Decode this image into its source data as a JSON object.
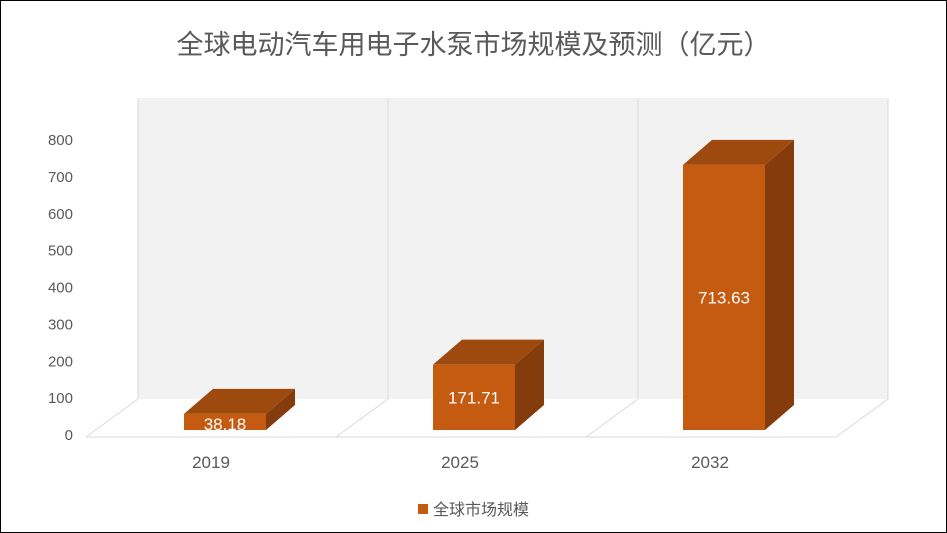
{
  "chart_data": {
    "type": "bar",
    "title": "全球电动汽车用电子水泵市场规模及预测（亿元）",
    "categories": [
      "2019",
      "2025",
      "2032"
    ],
    "series": [
      {
        "name": "全球市场规模",
        "values": [
          38.18,
          171.71,
          713.63
        ]
      }
    ],
    "data_labels": [
      "38.18",
      "171.71",
      "713.63"
    ],
    "yticks": [
      "0",
      "100",
      "200",
      "300",
      "400",
      "500",
      "600",
      "700",
      "800"
    ],
    "ylim": [
      0,
      800
    ],
    "grid": false,
    "legend_position": "bottom",
    "style": "3d-column"
  },
  "colors": {
    "bar_front": "#c55a11",
    "bar_side": "#843c0c",
    "bar_top": "#9e4a0e",
    "back_wall": "#f2f2f2",
    "wall_lines": "#d9d9d9",
    "text": "#595959"
  }
}
